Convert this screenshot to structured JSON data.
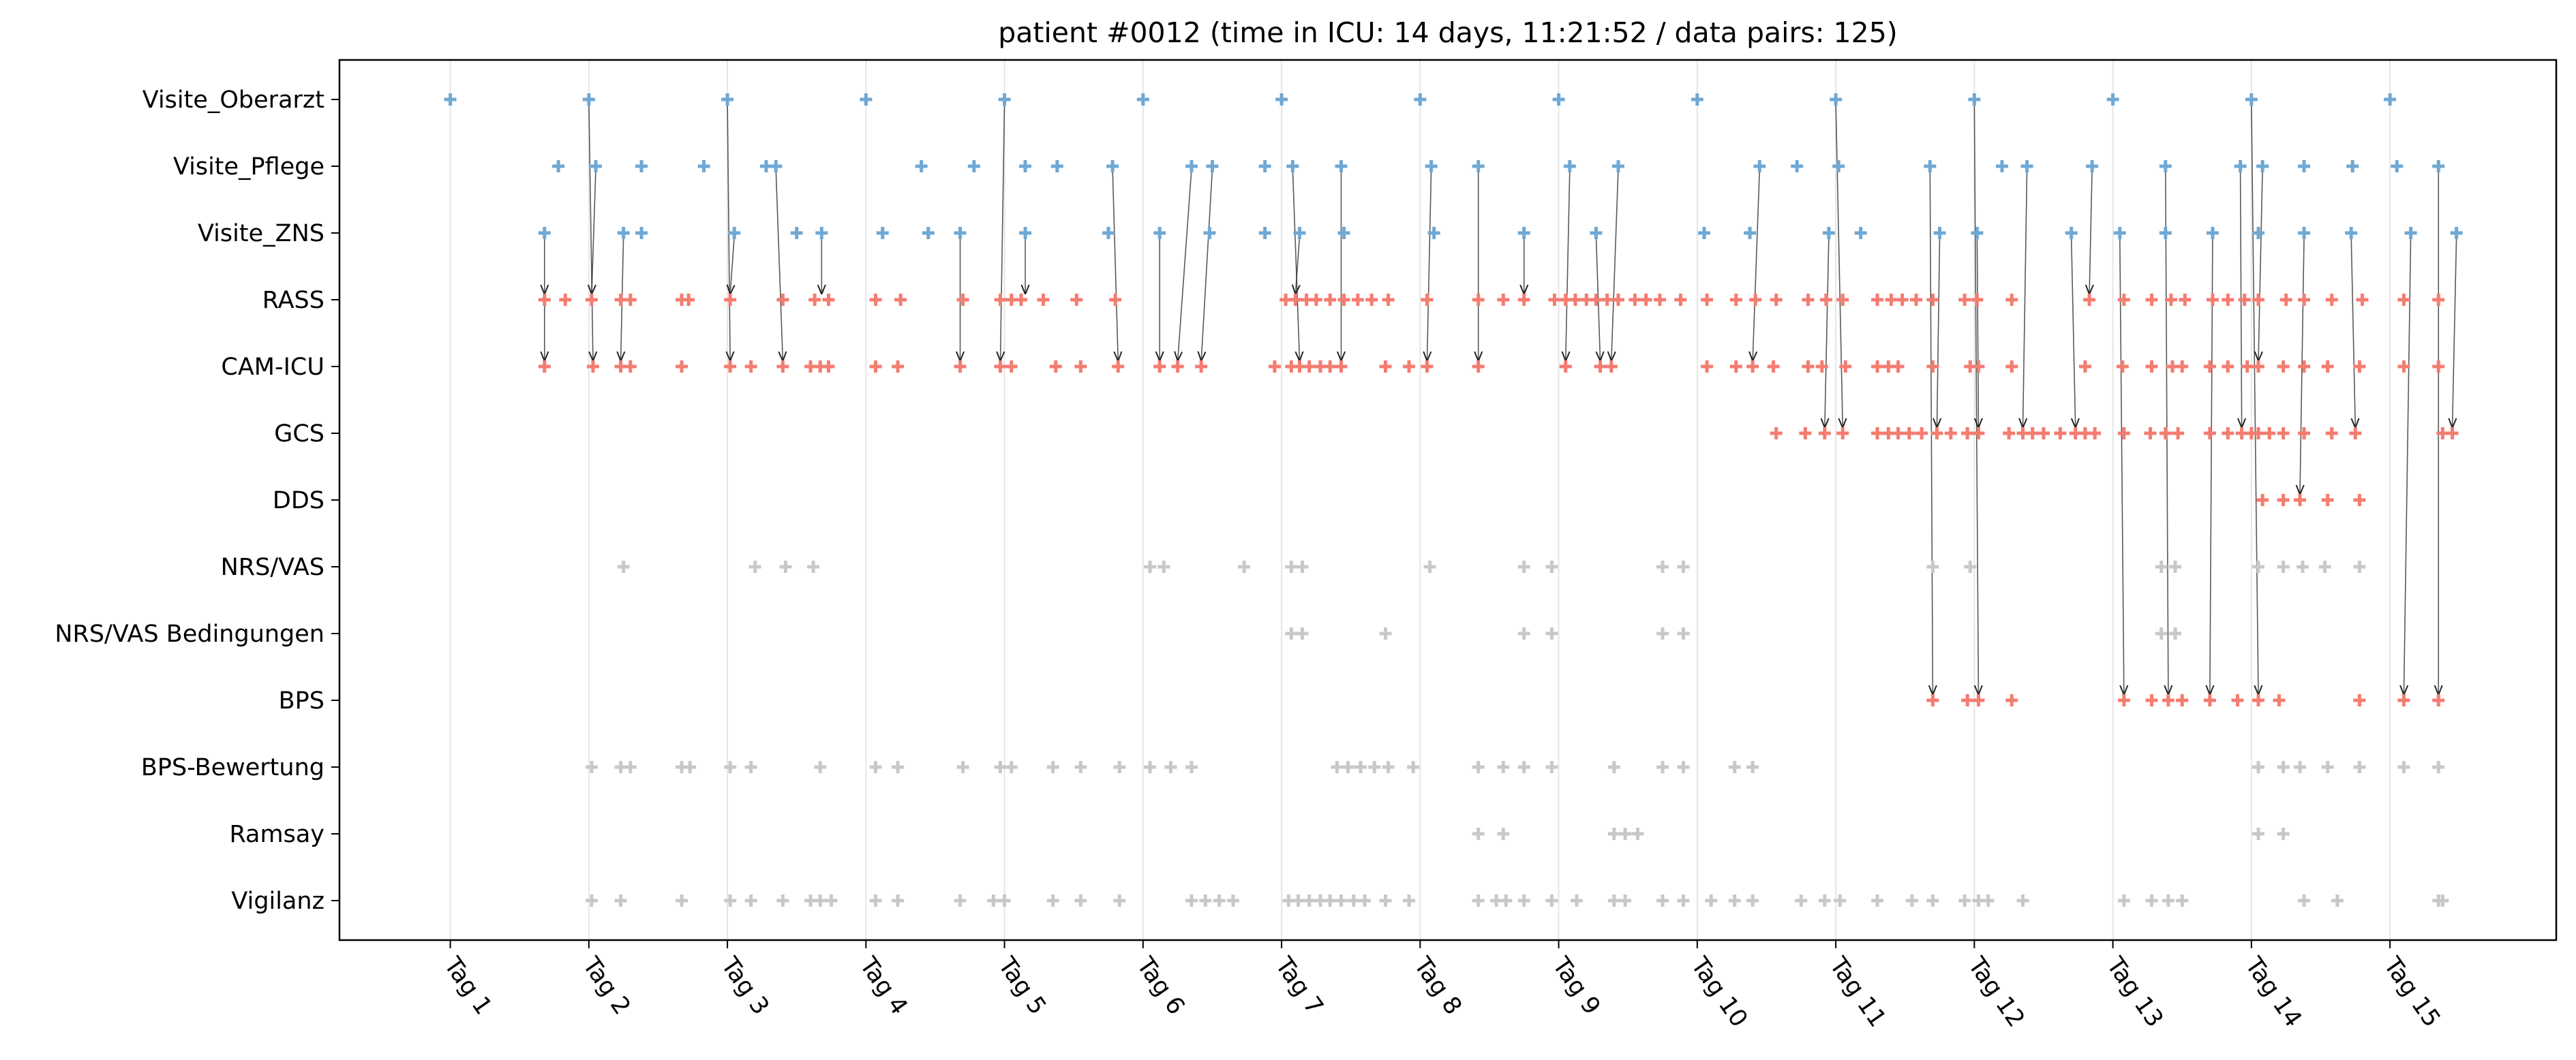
{
  "chart_data": {
    "type": "scatter",
    "title": "patient #0012 (time in ICU: 14 days, 11:21:52 / data pairs: 125)",
    "xlabel": "",
    "ylabel": "",
    "grid": "vertical",
    "categories": [
      "Visite_Oberarzt",
      "Visite_Pflege",
      "Visite_ZNS",
      "RASS",
      "CAM-ICU",
      "GCS",
      "DDS",
      "NRS/VAS",
      "NRS/VAS Bedingungen",
      "BPS",
      "BPS-Bewertung",
      "Ramsay",
      "Vigilanz"
    ],
    "x_ticks": [
      {
        "value": 1,
        "label": "Tag 1"
      },
      {
        "value": 2,
        "label": "Tag 2"
      },
      {
        "value": 3,
        "label": "Tag 3"
      },
      {
        "value": 4,
        "label": "Tag 4"
      },
      {
        "value": 5,
        "label": "Tag 5"
      },
      {
        "value": 6,
        "label": "Tag 6"
      },
      {
        "value": 7,
        "label": "Tag 7"
      },
      {
        "value": 8,
        "label": "Tag 8"
      },
      {
        "value": 9,
        "label": "Tag 9"
      },
      {
        "value": 10,
        "label": "Tag 10"
      },
      {
        "value": 11,
        "label": "Tag 11"
      },
      {
        "value": 12,
        "label": "Tag 12"
      },
      {
        "value": 13,
        "label": "Tag 13"
      },
      {
        "value": 14,
        "label": "Tag 14"
      },
      {
        "value": 15,
        "label": "Tag 15"
      }
    ],
    "xlim": [
      0.2,
      16.2
    ],
    "colors": {
      "visit": "#6fa8d4",
      "score": "#f47c70",
      "other": "#c8c8c8",
      "arrow": "#222222",
      "grid": "#e6e6e6"
    },
    "series": [
      {
        "category": "Visite_Oberarzt",
        "color": "visit",
        "x": [
          1.0,
          2.0,
          3.0,
          4.0,
          5.0,
          6.0,
          7.0,
          8.0,
          9.0,
          10.0,
          11.0,
          12.0,
          13.0,
          14.0,
          15.0
        ]
      },
      {
        "category": "Visite_Pflege",
        "color": "visit",
        "x": [
          1.78,
          2.05,
          2.38,
          2.83,
          3.28,
          3.35,
          4.4,
          4.78,
          5.15,
          5.38,
          5.78,
          6.35,
          6.5,
          6.88,
          7.08,
          7.43,
          8.08,
          8.42,
          9.08,
          9.43,
          10.45,
          10.72,
          11.02,
          11.68,
          12.2,
          12.38,
          12.85,
          13.38,
          13.92,
          14.08,
          14.38,
          14.73,
          15.05,
          15.35
        ]
      },
      {
        "category": "Visite_ZNS",
        "color": "visit",
        "x": [
          1.68,
          2.25,
          2.38,
          3.05,
          3.5,
          3.68,
          4.12,
          4.45,
          4.68,
          5.15,
          5.75,
          6.12,
          6.48,
          6.88,
          7.13,
          7.45,
          8.1,
          8.75,
          9.27,
          10.05,
          10.38,
          10.95,
          11.18,
          11.75,
          12.02,
          12.7,
          13.05,
          13.38,
          13.72,
          14.05,
          14.38,
          14.72,
          15.15,
          15.48
        ]
      },
      {
        "category": "RASS",
        "color": "score",
        "x": [
          1.68,
          1.83,
          2.02,
          2.23,
          2.3,
          2.67,
          2.72,
          3.02,
          3.4,
          3.63,
          3.73,
          4.07,
          4.25,
          4.7,
          4.97,
          5.05,
          5.12,
          5.28,
          5.52,
          5.8,
          7.03,
          7.1,
          7.18,
          7.25,
          7.35,
          7.45,
          7.55,
          7.65,
          7.77,
          8.05,
          8.42,
          8.6,
          8.75,
          8.97,
          9.05,
          9.12,
          9.2,
          9.27,
          9.35,
          9.43,
          9.55,
          9.63,
          9.73,
          9.88,
          10.07,
          10.28,
          10.42,
          10.57,
          10.8,
          10.93,
          11.05,
          11.3,
          11.4,
          11.48,
          11.58,
          11.7,
          11.93,
          12.02,
          12.27,
          12.83,
          13.08,
          13.28,
          13.42,
          13.52,
          13.72,
          13.83,
          13.95,
          14.05,
          14.25,
          14.38,
          14.58,
          14.8,
          15.1,
          15.35
        ]
      },
      {
        "category": "CAM-ICU",
        "color": "score",
        "x": [
          1.68,
          2.03,
          2.23,
          2.3,
          2.67,
          3.02,
          3.17,
          3.4,
          3.6,
          3.67,
          3.73,
          4.07,
          4.23,
          4.68,
          4.97,
          5.05,
          5.37,
          5.55,
          5.82,
          6.12,
          6.25,
          6.42,
          6.95,
          7.07,
          7.13,
          7.2,
          7.28,
          7.35,
          7.43,
          7.75,
          7.92,
          8.05,
          8.42,
          9.05,
          9.3,
          9.38,
          10.07,
          10.28,
          10.4,
          10.55,
          10.8,
          10.9,
          11.07,
          11.3,
          11.38,
          11.45,
          11.7,
          11.97,
          12.03,
          12.27,
          12.8,
          13.07,
          13.28,
          13.43,
          13.5,
          13.7,
          13.83,
          13.97,
          14.05,
          14.23,
          14.38,
          14.55,
          14.78,
          15.1,
          15.35
        ]
      },
      {
        "category": "GCS",
        "color": "score",
        "x": [
          10.57,
          10.78,
          10.92,
          11.05,
          11.3,
          11.38,
          11.45,
          11.53,
          11.62,
          11.73,
          11.83,
          11.95,
          12.03,
          12.25,
          12.35,
          12.42,
          12.5,
          12.62,
          12.73,
          12.8,
          12.87,
          13.08,
          13.27,
          13.38,
          13.47,
          13.7,
          13.83,
          13.93,
          14.0,
          14.05,
          14.13,
          14.23,
          14.38,
          14.58,
          14.75,
          15.38,
          15.45
        ]
      },
      {
        "category": "DDS",
        "color": "score",
        "x": [
          14.08,
          14.23,
          14.35,
          14.55,
          14.78
        ]
      },
      {
        "category": "NRS/VAS",
        "color": "other",
        "x": [
          2.25,
          3.2,
          3.42,
          3.62,
          6.05,
          6.15,
          6.73,
          7.07,
          7.15,
          8.07,
          8.75,
          8.95,
          9.75,
          9.9,
          11.7,
          11.97,
          13.35,
          13.45,
          14.05,
          14.23,
          14.37,
          14.53,
          14.78
        ]
      },
      {
        "category": "NRS/VAS Bedingungen",
        "color": "other",
        "x": [
          7.07,
          7.15,
          7.75,
          8.75,
          8.95,
          9.75,
          9.9,
          13.35,
          13.45
        ]
      },
      {
        "category": "BPS",
        "color": "score",
        "x": [
          11.7,
          11.95,
          12.03,
          12.27,
          13.08,
          13.28,
          13.4,
          13.5,
          13.7,
          13.9,
          14.05,
          14.2,
          14.78,
          15.1,
          15.35
        ]
      },
      {
        "category": "BPS-Bewertung",
        "color": "other",
        "x": [
          2.02,
          2.23,
          2.3,
          2.67,
          2.73,
          3.02,
          3.17,
          3.67,
          4.07,
          4.23,
          4.7,
          4.97,
          5.05,
          5.35,
          5.55,
          5.83,
          6.05,
          6.2,
          6.35,
          7.4,
          7.48,
          7.57,
          7.67,
          7.77,
          7.95,
          8.42,
          8.6,
          8.75,
          8.95,
          9.4,
          9.75,
          9.9,
          10.27,
          10.4,
          14.05,
          14.23,
          14.35,
          14.55,
          14.78,
          15.1,
          15.35
        ]
      },
      {
        "category": "Ramsay",
        "color": "other",
        "x": [
          8.42,
          8.6,
          9.4,
          9.48,
          9.57,
          14.05,
          14.23
        ]
      },
      {
        "category": "Vigilanz",
        "color": "other",
        "x": [
          2.02,
          2.23,
          2.67,
          3.02,
          3.17,
          3.4,
          3.6,
          3.67,
          3.75,
          4.07,
          4.23,
          4.68,
          4.92,
          5.0,
          5.35,
          5.55,
          5.83,
          6.35,
          6.45,
          6.55,
          6.65,
          7.05,
          7.12,
          7.2,
          7.28,
          7.35,
          7.43,
          7.52,
          7.6,
          7.75,
          7.92,
          8.42,
          8.55,
          8.62,
          8.75,
          8.95,
          9.13,
          9.4,
          9.48,
          9.75,
          9.9,
          10.1,
          10.27,
          10.4,
          10.75,
          10.92,
          11.03,
          11.3,
          11.55,
          11.7,
          11.93,
          12.03,
          12.1,
          12.35,
          13.08,
          13.28,
          13.4,
          13.5,
          14.38,
          14.62,
          15.35,
          15.38
        ]
      }
    ],
    "arrows": [
      {
        "from": [
          "Visite_ZNS",
          1.68
        ],
        "to": [
          "RASS",
          1.68
        ]
      },
      {
        "from": [
          "RASS",
          1.68
        ],
        "to": [
          "CAM-ICU",
          1.68
        ]
      },
      {
        "from": [
          "Visite_Oberarzt",
          2.0
        ],
        "to": [
          "CAM-ICU",
          2.03
        ]
      },
      {
        "from": [
          "Visite_Pflege",
          2.05
        ],
        "to": [
          "RASS",
          2.02
        ]
      },
      {
        "from": [
          "Visite_ZNS",
          2.25
        ],
        "to": [
          "CAM-ICU",
          2.23
        ]
      },
      {
        "from": [
          "Visite_Oberarzt",
          3.0
        ],
        "to": [
          "CAM-ICU",
          3.02
        ]
      },
      {
        "from": [
          "Visite_ZNS",
          3.05
        ],
        "to": [
          "RASS",
          3.02
        ]
      },
      {
        "from": [
          "Visite_Pflege",
          3.35
        ],
        "to": [
          "CAM-ICU",
          3.4
        ]
      },
      {
        "from": [
          "Visite_ZNS",
          3.68
        ],
        "to": [
          "RASS",
          3.68
        ]
      },
      {
        "from": [
          "Visite_ZNS",
          4.68
        ],
        "to": [
          "CAM-ICU",
          4.68
        ]
      },
      {
        "from": [
          "Visite_Oberarzt",
          5.0
        ],
        "to": [
          "CAM-ICU",
          4.97
        ]
      },
      {
        "from": [
          "Visite_ZNS",
          5.15
        ],
        "to": [
          "RASS",
          5.15
        ]
      },
      {
        "from": [
          "Visite_Pflege",
          5.78
        ],
        "to": [
          "CAM-ICU",
          5.82
        ]
      },
      {
        "from": [
          "Visite_ZNS",
          6.12
        ],
        "to": [
          "CAM-ICU",
          6.12
        ]
      },
      {
        "from": [
          "Visite_Pflege",
          6.35
        ],
        "to": [
          "CAM-ICU",
          6.25
        ]
      },
      {
        "from": [
          "Visite_Pflege",
          6.5
        ],
        "to": [
          "CAM-ICU",
          6.42
        ]
      },
      {
        "from": [
          "Visite_Pflege",
          7.08
        ],
        "to": [
          "CAM-ICU",
          7.13
        ]
      },
      {
        "from": [
          "Visite_ZNS",
          7.13
        ],
        "to": [
          "RASS",
          7.1
        ]
      },
      {
        "from": [
          "Visite_Pflege",
          7.43
        ],
        "to": [
          "CAM-ICU",
          7.43
        ]
      },
      {
        "from": [
          "Visite_Pflege",
          8.08
        ],
        "to": [
          "CAM-ICU",
          8.05
        ]
      },
      {
        "from": [
          "Visite_Pflege",
          8.42
        ],
        "to": [
          "CAM-ICU",
          8.42
        ]
      },
      {
        "from": [
          "Visite_ZNS",
          8.75
        ],
        "to": [
          "RASS",
          8.75
        ]
      },
      {
        "from": [
          "Visite_Pflege",
          9.08
        ],
        "to": [
          "CAM-ICU",
          9.05
        ]
      },
      {
        "from": [
          "Visite_ZNS",
          9.27
        ],
        "to": [
          "CAM-ICU",
          9.3
        ]
      },
      {
        "from": [
          "Visite_Pflege",
          9.43
        ],
        "to": [
          "CAM-ICU",
          9.38
        ]
      },
      {
        "from": [
          "Visite_Pflege",
          10.45
        ],
        "to": [
          "CAM-ICU",
          10.4
        ]
      },
      {
        "from": [
          "Visite_ZNS",
          10.95
        ],
        "to": [
          "GCS",
          10.92
        ]
      },
      {
        "from": [
          "Visite_Oberarzt",
          11.0
        ],
        "to": [
          "GCS",
          11.05
        ]
      },
      {
        "from": [
          "Visite_Pflege",
          11.68
        ],
        "to": [
          "BPS",
          11.7
        ]
      },
      {
        "from": [
          "Visite_ZNS",
          11.75
        ],
        "to": [
          "GCS",
          11.73
        ]
      },
      {
        "from": [
          "Visite_Oberarzt",
          12.0
        ],
        "to": [
          "BPS",
          12.03
        ]
      },
      {
        "from": [
          "Visite_ZNS",
          12.02
        ],
        "to": [
          "GCS",
          12.03
        ]
      },
      {
        "from": [
          "Visite_Pflege",
          12.38
        ],
        "to": [
          "GCS",
          12.35
        ]
      },
      {
        "from": [
          "Visite_ZNS",
          12.7
        ],
        "to": [
          "GCS",
          12.73
        ]
      },
      {
        "from": [
          "Visite_Pflege",
          12.85
        ],
        "to": [
          "RASS",
          12.83
        ]
      },
      {
        "from": [
          "Visite_ZNS",
          13.05
        ],
        "to": [
          "BPS",
          13.08
        ]
      },
      {
        "from": [
          "Visite_Pflege",
          13.38
        ],
        "to": [
          "BPS",
          13.4
        ]
      },
      {
        "from": [
          "Visite_ZNS",
          13.72
        ],
        "to": [
          "BPS",
          13.7
        ]
      },
      {
        "from": [
          "Visite_Pflege",
          13.92
        ],
        "to": [
          "GCS",
          13.93
        ]
      },
      {
        "from": [
          "Visite_Oberarzt",
          14.0
        ],
        "to": [
          "BPS",
          14.05
        ]
      },
      {
        "from": [
          "Visite_Pflege",
          14.08
        ],
        "to": [
          "CAM-ICU",
          14.05
        ]
      },
      {
        "from": [
          "Visite_ZNS",
          14.38
        ],
        "to": [
          "DDS",
          14.35
        ]
      },
      {
        "from": [
          "Visite_ZNS",
          14.72
        ],
        "to": [
          "GCS",
          14.75
        ]
      },
      {
        "from": [
          "Visite_ZNS",
          15.15
        ],
        "to": [
          "BPS",
          15.1
        ]
      },
      {
        "from": [
          "Visite_Pflege",
          15.35
        ],
        "to": [
          "BPS",
          15.35
        ]
      },
      {
        "from": [
          "Visite_ZNS",
          15.48
        ],
        "to": [
          "GCS",
          15.45
        ]
      }
    ]
  }
}
